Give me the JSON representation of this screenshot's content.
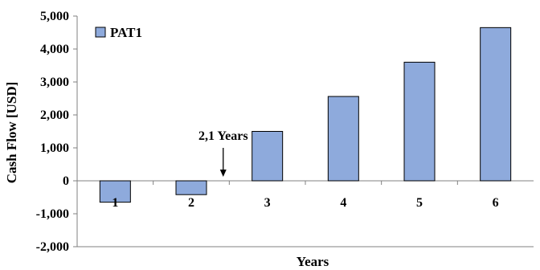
{
  "chart_data": {
    "type": "bar",
    "categories": [
      "1",
      "2",
      "3",
      "4",
      "5",
      "6"
    ],
    "series": [
      {
        "name": "PAT1",
        "values": [
          -650,
          -420,
          1500,
          2560,
          3600,
          4650
        ]
      }
    ],
    "xlabel": "Years",
    "ylabel": "Cash Flow [USD]",
    "ylim": [
      -2000,
      5000
    ],
    "yticks": [
      -2000,
      -1000,
      0,
      1000,
      2000,
      3000,
      4000,
      5000
    ],
    "ytick_labels": [
      "-2,000",
      "-1,000",
      "0",
      "1,000",
      "2,000",
      "3,000",
      "4,000",
      "5,000"
    ],
    "grid": false,
    "legend": "top-left",
    "annotation": {
      "text": "2,1 Years",
      "x": 2.1
    },
    "colors": {
      "bar": "#8eaadc",
      "bar_edge": "#000000",
      "axis": "#808080"
    }
  }
}
